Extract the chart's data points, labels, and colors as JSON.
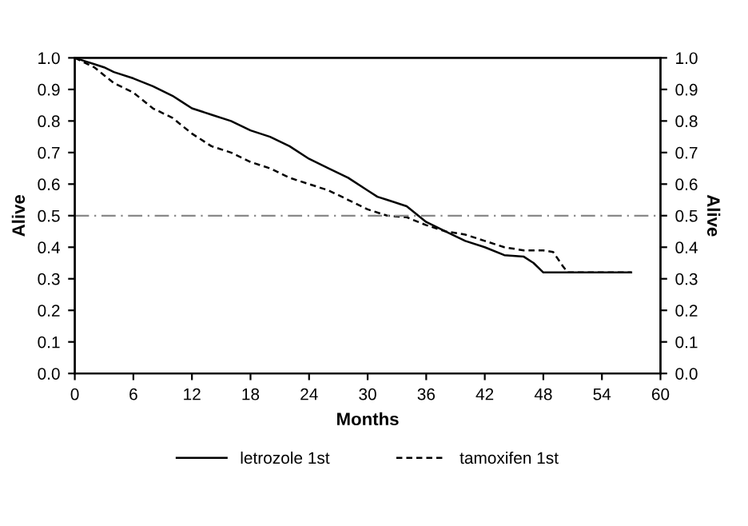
{
  "chart_data": {
    "type": "line",
    "xlabel": "Months",
    "ylabel": "Alive",
    "y2label": "Alive",
    "xlim": [
      0,
      60
    ],
    "xticks": [
      0,
      6,
      12,
      18,
      24,
      30,
      36,
      42,
      48,
      54,
      60
    ],
    "ylim": [
      0,
      1
    ],
    "yticks": [
      "0.0",
      0.1,
      0.2,
      0.3,
      0.4,
      0.5,
      0.6,
      0.7,
      0.8,
      0.9,
      "1.0"
    ],
    "y2lim": [
      0,
      1
    ],
    "y2ticks": [
      "0.0",
      0.1,
      0.2,
      0.3,
      0.4,
      0.5,
      0.6,
      0.7,
      0.8,
      0.9,
      "1.0"
    ],
    "legend": "bottom",
    "grid": false,
    "marker": "none",
    "ref_lines": [
      {
        "axis": "y",
        "value": 0.5,
        "color": "#888888",
        "line_style": "dashdot"
      }
    ],
    "series": [
      {
        "name": "letrozole 1st",
        "color": "#000000",
        "line_style": "solid",
        "x": [
          0,
          1,
          2,
          3,
          4,
          6,
          8,
          10,
          11,
          12,
          14,
          16,
          18,
          20,
          22,
          24,
          26,
          28,
          30,
          31,
          32,
          34,
          36,
          38,
          40,
          42,
          44,
          46,
          47,
          48,
          57
        ],
        "values": [
          1.0,
          0.99,
          0.98,
          0.97,
          0.955,
          0.935,
          0.91,
          0.88,
          0.86,
          0.84,
          0.82,
          0.8,
          0.77,
          0.75,
          0.72,
          0.68,
          0.65,
          0.62,
          0.58,
          0.56,
          0.55,
          0.53,
          0.48,
          0.45,
          0.42,
          0.4,
          0.375,
          0.37,
          0.35,
          0.32,
          0.32
        ]
      },
      {
        "name": "tamoxifen 1st",
        "color": "#000000",
        "line_style": "dashed",
        "x": [
          0,
          1,
          2,
          4,
          6,
          8,
          10,
          12,
          14,
          16,
          18,
          20,
          22,
          24,
          26,
          28,
          30,
          32,
          34,
          36,
          38,
          40,
          42,
          44,
          46,
          48,
          49,
          50,
          50.5,
          57
        ],
        "values": [
          1.0,
          0.985,
          0.97,
          0.92,
          0.89,
          0.84,
          0.81,
          0.76,
          0.72,
          0.7,
          0.67,
          0.65,
          0.62,
          0.6,
          0.58,
          0.55,
          0.52,
          0.5,
          0.495,
          0.47,
          0.45,
          0.44,
          0.42,
          0.4,
          0.39,
          0.39,
          0.385,
          0.34,
          0.32,
          0.32
        ]
      }
    ]
  }
}
